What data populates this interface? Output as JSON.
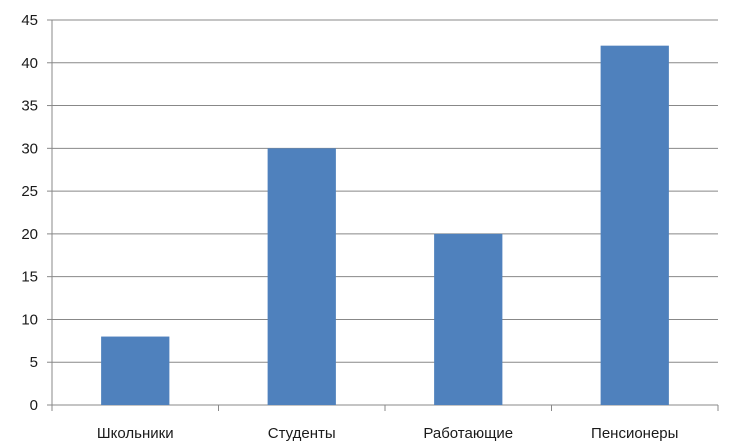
{
  "chart_data": {
    "type": "bar",
    "title": "",
    "xlabel": "",
    "ylabel": "",
    "categories": [
      "Школьники",
      "Студенты",
      "Работающие",
      "Пенсионеры"
    ],
    "values": [
      8,
      30,
      20,
      42
    ],
    "ylim": [
      0,
      45
    ],
    "yticks": [
      0,
      5,
      10,
      15,
      20,
      25,
      30,
      35,
      40,
      45
    ],
    "grid": true,
    "legend": "none",
    "colors": {
      "bar": "#4f81bd",
      "grid": "#888888",
      "axis": "#888888"
    }
  }
}
